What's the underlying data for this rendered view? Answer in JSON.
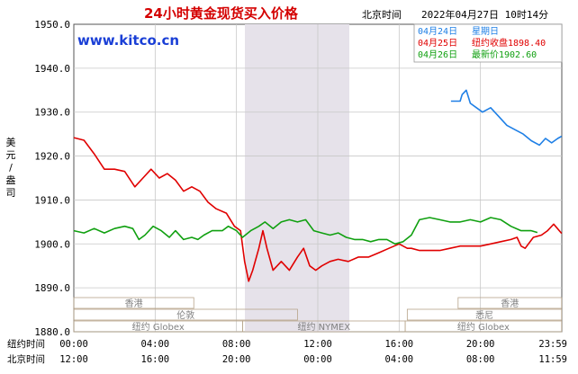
{
  "chart_data": {
    "type": "line",
    "title": "24小时黄金现货买入价格",
    "header_tz": "北京时间",
    "header_datetime": "2022年04月27日 10时14分",
    "watermark": "www.kitco.cn",
    "ylabel": "美元/盎司",
    "ylim": [
      1880,
      1950
    ],
    "yticks": [
      "1950.0",
      "1940.0",
      "1930.0",
      "1920.0",
      "1910.0",
      "1900.0",
      "1890.0",
      "1880.0"
    ],
    "x_rows": [
      {
        "label": "纽约时间",
        "ticks": [
          "00:00",
          "04:00",
          "08:00",
          "12:00",
          "16:00",
          "20:00",
          "23:59"
        ]
      },
      {
        "label": "北京时间",
        "ticks": [
          "12:00",
          "16:00",
          "20:00",
          "00:00",
          "04:00",
          "08:00",
          "11:59"
        ]
      }
    ],
    "grid": true,
    "legend_position": "top-right",
    "legend": [
      {
        "date": "04月24日",
        "text": "星期日",
        "color": "#1e7fe6"
      },
      {
        "date": "04月25日",
        "text": "纽约收盘1898.40",
        "color": "#e00000"
      },
      {
        "date": "04月26日",
        "text": "最新价1902.60",
        "color": "#10a010"
      }
    ],
    "sessions": [
      {
        "label": "香港",
        "row": 0
      },
      {
        "label": "香港",
        "row": 0
      },
      {
        "label": "伦敦",
        "row": 1
      },
      {
        "label": "悉尼",
        "row": 1
      },
      {
        "label": "纽约 Globex",
        "row": 2
      },
      {
        "label": "纽约 NYMEX",
        "row": 2
      },
      {
        "label": "纽约 Globex",
        "row": 2
      }
    ],
    "shaded_session": "纽约 NYMEX",
    "series": [
      {
        "name": "04月24日",
        "color": "#1e7fe6",
        "points": [
          [
            18.55,
            1932.5
          ],
          [
            19.0,
            1932.5
          ],
          [
            19.1,
            1934
          ],
          [
            19.3,
            1935
          ],
          [
            19.5,
            1932
          ],
          [
            19.8,
            1931
          ],
          [
            20.1,
            1930
          ],
          [
            20.5,
            1931
          ],
          [
            20.9,
            1929
          ],
          [
            21.3,
            1927
          ],
          [
            21.7,
            1926
          ],
          [
            22.1,
            1925
          ],
          [
            22.5,
            1923.5
          ],
          [
            22.9,
            1922.5
          ],
          [
            23.2,
            1924
          ],
          [
            23.5,
            1923
          ],
          [
            23.8,
            1924
          ],
          [
            23.99,
            1924.5
          ]
        ]
      },
      {
        "name": "04月25日",
        "color": "#e00000",
        "points": [
          [
            0,
            1924.2
          ],
          [
            0.5,
            1923.6
          ],
          [
            1.0,
            1920.5
          ],
          [
            1.5,
            1917
          ],
          [
            2.0,
            1917
          ],
          [
            2.5,
            1916.5
          ],
          [
            3.0,
            1913
          ],
          [
            3.4,
            1915
          ],
          [
            3.8,
            1917
          ],
          [
            4.2,
            1915
          ],
          [
            4.6,
            1916
          ],
          [
            5.0,
            1914.5
          ],
          [
            5.4,
            1912
          ],
          [
            5.8,
            1913
          ],
          [
            6.2,
            1912
          ],
          [
            6.6,
            1909.5
          ],
          [
            7.0,
            1908
          ],
          [
            7.5,
            1907
          ],
          [
            7.9,
            1904
          ],
          [
            8.2,
            1903
          ],
          [
            8.4,
            1896
          ],
          [
            8.6,
            1891.5
          ],
          [
            8.8,
            1894
          ],
          [
            9.1,
            1899
          ],
          [
            9.3,
            1903
          ],
          [
            9.5,
            1899
          ],
          [
            9.8,
            1894
          ],
          [
            10.2,
            1896
          ],
          [
            10.6,
            1894
          ],
          [
            11.0,
            1897
          ],
          [
            11.3,
            1899
          ],
          [
            11.6,
            1895
          ],
          [
            11.9,
            1894
          ],
          [
            12.2,
            1895
          ],
          [
            12.6,
            1896
          ],
          [
            13.0,
            1896.5
          ],
          [
            13.5,
            1896
          ],
          [
            14.0,
            1897
          ],
          [
            14.5,
            1897
          ],
          [
            15.0,
            1898
          ],
          [
            15.5,
            1899
          ],
          [
            16.0,
            1900
          ],
          [
            16.4,
            1899
          ],
          [
            16.6,
            1899
          ],
          [
            17.0,
            1898.5
          ],
          [
            17.5,
            1898.5
          ],
          [
            18.0,
            1898.5
          ],
          [
            18.5,
            1899
          ],
          [
            19.0,
            1899.5
          ],
          [
            19.5,
            1899.5
          ],
          [
            20.0,
            1899.5
          ],
          [
            20.5,
            1900
          ],
          [
            21.0,
            1900.5
          ],
          [
            21.5,
            1901
          ],
          [
            21.8,
            1901.5
          ],
          [
            22.0,
            1899.5
          ],
          [
            22.2,
            1899
          ],
          [
            22.6,
            1901.5
          ],
          [
            23.0,
            1902
          ],
          [
            23.3,
            1903
          ],
          [
            23.6,
            1904.5
          ],
          [
            23.99,
            1902.4
          ]
        ]
      },
      {
        "name": "04月26日",
        "color": "#10a010",
        "points": [
          [
            0,
            1903
          ],
          [
            0.5,
            1902.5
          ],
          [
            1.0,
            1903.5
          ],
          [
            1.5,
            1902.5
          ],
          [
            2.0,
            1903.5
          ],
          [
            2.5,
            1904
          ],
          [
            2.9,
            1903.5
          ],
          [
            3.2,
            1901
          ],
          [
            3.5,
            1902
          ],
          [
            3.9,
            1904
          ],
          [
            4.3,
            1903
          ],
          [
            4.7,
            1901.5
          ],
          [
            5.0,
            1903
          ],
          [
            5.4,
            1901
          ],
          [
            5.8,
            1901.5
          ],
          [
            6.1,
            1901
          ],
          [
            6.4,
            1902
          ],
          [
            6.8,
            1903
          ],
          [
            7.3,
            1903
          ],
          [
            7.6,
            1904
          ],
          [
            8.0,
            1903
          ],
          [
            8.3,
            1901.5
          ],
          [
            8.7,
            1903
          ],
          [
            9.1,
            1904
          ],
          [
            9.4,
            1905
          ],
          [
            9.8,
            1903.5
          ],
          [
            10.2,
            1905
          ],
          [
            10.6,
            1905.5
          ],
          [
            11.0,
            1905
          ],
          [
            11.4,
            1905.5
          ],
          [
            11.8,
            1903
          ],
          [
            12.2,
            1902.5
          ],
          [
            12.6,
            1902
          ],
          [
            13.0,
            1902.5
          ],
          [
            13.4,
            1901.5
          ],
          [
            13.8,
            1901
          ],
          [
            14.2,
            1901
          ],
          [
            14.6,
            1900.5
          ],
          [
            15.0,
            1901
          ],
          [
            15.4,
            1901
          ],
          [
            15.8,
            1900
          ],
          [
            16.2,
            1900.5
          ],
          [
            16.6,
            1902
          ],
          [
            17.0,
            1905.5
          ],
          [
            17.5,
            1906
          ],
          [
            18.0,
            1905.5
          ],
          [
            18.5,
            1905
          ],
          [
            19.0,
            1905
          ],
          [
            19.5,
            1905.5
          ],
          [
            20.0,
            1905
          ],
          [
            20.5,
            1906
          ],
          [
            21.0,
            1905.5
          ],
          [
            21.5,
            1904
          ],
          [
            22.0,
            1903
          ],
          [
            22.5,
            1903
          ],
          [
            22.8,
            1902.6
          ]
        ]
      }
    ]
  }
}
